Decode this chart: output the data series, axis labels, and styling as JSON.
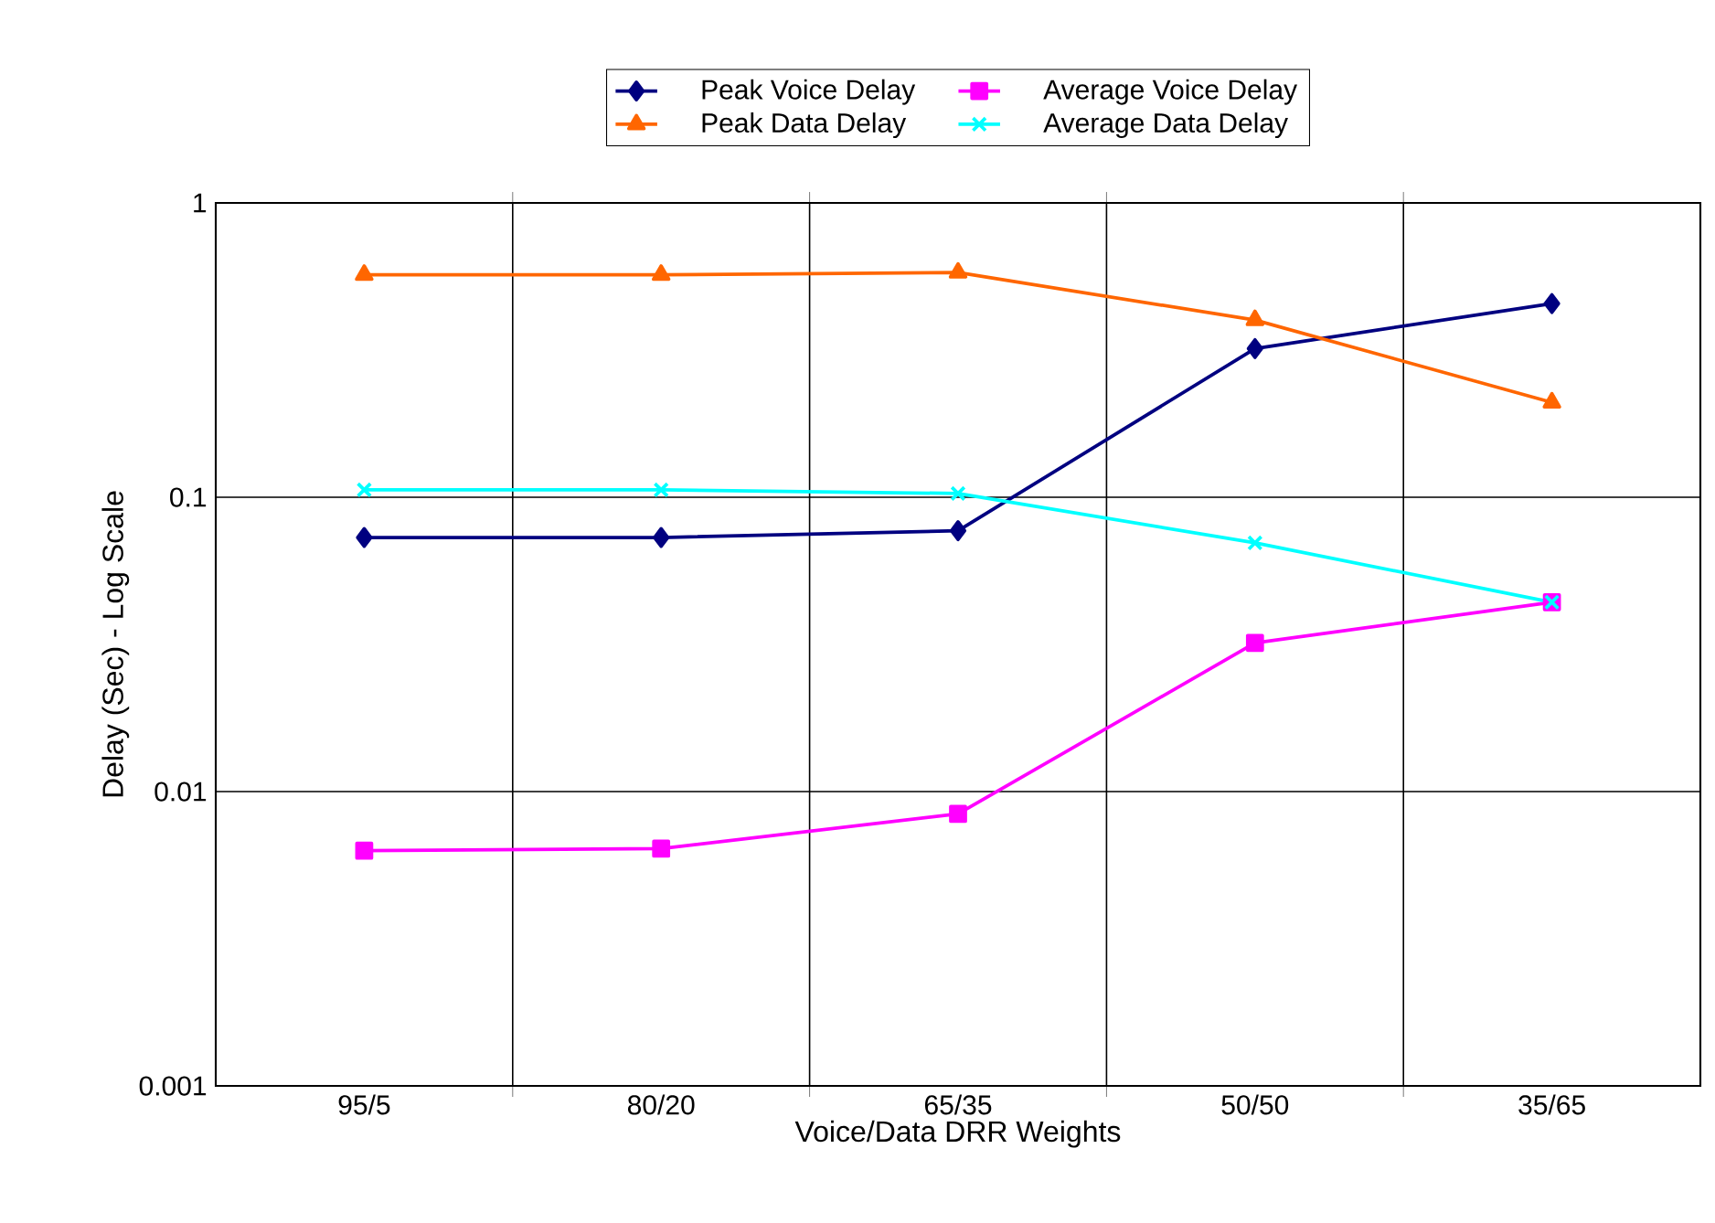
{
  "chart_data": {
    "type": "line",
    "xlabel": "Voice/Data DRR Weights",
    "ylabel": "Delay (Sec) - Log Scale",
    "categories": [
      "95/5",
      "80/20",
      "65/35",
      "50/50",
      "35/65"
    ],
    "series": [
      {
        "name": "Peak Voice Delay",
        "color": "#000080",
        "marker": "diamond",
        "values": [
          0.073,
          0.073,
          0.077,
          0.32,
          0.455
        ]
      },
      {
        "name": "Average Voice Delay",
        "color": "#ff00ff",
        "marker": "square",
        "values": [
          0.0063,
          0.0064,
          0.0084,
          0.032,
          0.044
        ]
      },
      {
        "name": "Peak Data Delay",
        "color": "#ff6600",
        "marker": "triangle",
        "values": [
          0.57,
          0.57,
          0.58,
          0.4,
          0.21
        ]
      },
      {
        "name": "Average Data Delay",
        "color": "#00ffff",
        "marker": "cross",
        "values": [
          0.106,
          0.106,
          0.103,
          0.07,
          0.044
        ]
      }
    ],
    "log": true,
    "ylim": [
      0.001,
      1
    ],
    "yticks": [
      0.001,
      0.01,
      0.1,
      1
    ],
    "grid": true,
    "legend": "top",
    "line_style": "solid"
  }
}
